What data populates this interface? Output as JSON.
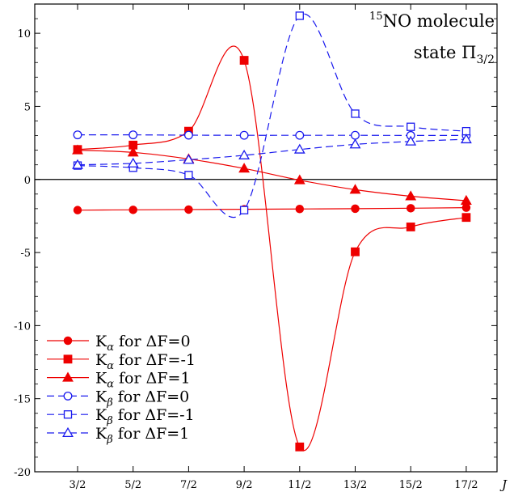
{
  "chart_data": {
    "type": "line",
    "categories": [
      "3/2",
      "5/2",
      "7/2",
      "9/2",
      "11/2",
      "13/2",
      "15/2",
      "17/2"
    ],
    "x_axis_label": "J",
    "ylim": [
      -20,
      12
    ],
    "yticks": [
      -20,
      -15,
      -10,
      -5,
      0,
      5,
      10
    ],
    "ytick_labels": [
      "-20",
      "-15",
      "-10",
      "-5",
      "0",
      "5",
      "10"
    ],
    "zero_line": true,
    "grid": false,
    "legend_position": "bottom-left",
    "annotation": {
      "line1_sup": "15",
      "line1_main": "NO molecule",
      "line2_main": "state Π",
      "line2_sub": "3/2"
    },
    "series": [
      {
        "name": "K_α for ΔF=0",
        "legend_sym": "K",
        "legend_sub": "α",
        "legend_rest": " for ΔF=0",
        "color": "#ee0000",
        "marker": "circle",
        "filled": true,
        "dashed": false,
        "values": [
          -2.1,
          -2.08,
          -2.06,
          -2.04,
          -2.02,
          -2.0,
          -1.97,
          -1.93
        ]
      },
      {
        "name": "K_α for ΔF=-1",
        "legend_sym": "K",
        "legend_sub": "α",
        "legend_rest": " for ΔF=-1",
        "color": "#ee0000",
        "marker": "square",
        "filled": true,
        "dashed": false,
        "values": [
          2.05,
          2.35,
          3.3,
          8.15,
          -18.3,
          -4.95,
          -3.25,
          -2.6
        ]
      },
      {
        "name": "K_α for ΔF=1",
        "legend_sym": "K",
        "legend_sub": "α",
        "legend_rest": " for ΔF=1",
        "color": "#ee0000",
        "marker": "triangle",
        "filled": true,
        "dashed": false,
        "values": [
          2.0,
          1.85,
          1.4,
          0.75,
          -0.05,
          -0.7,
          -1.15,
          -1.45
        ]
      },
      {
        "name": "K_β for ΔF=0",
        "legend_sym": "K",
        "legend_sub": "β",
        "legend_rest": " for ΔF=0",
        "color": "#1a1aee",
        "marker": "circle",
        "filled": false,
        "dashed": true,
        "values": [
          3.05,
          3.05,
          3.03,
          3.02,
          3.02,
          3.02,
          3.01,
          3.01
        ]
      },
      {
        "name": "K_β for ΔF=-1",
        "legend_sym": "K",
        "legend_sub": "β",
        "legend_rest": " for ΔF=-1",
        "color": "#1a1aee",
        "marker": "square",
        "filled": false,
        "dashed": true,
        "values": [
          0.95,
          0.8,
          0.3,
          -2.1,
          11.2,
          4.5,
          3.6,
          3.3
        ]
      },
      {
        "name": "K_β for ΔF=1",
        "legend_sym": "K",
        "legend_sub": "β",
        "legend_rest": " for ΔF=1",
        "color": "#1a1aee",
        "marker": "triangle",
        "filled": false,
        "dashed": true,
        "values": [
          1.0,
          1.1,
          1.35,
          1.65,
          2.05,
          2.4,
          2.6,
          2.75
        ]
      }
    ]
  }
}
